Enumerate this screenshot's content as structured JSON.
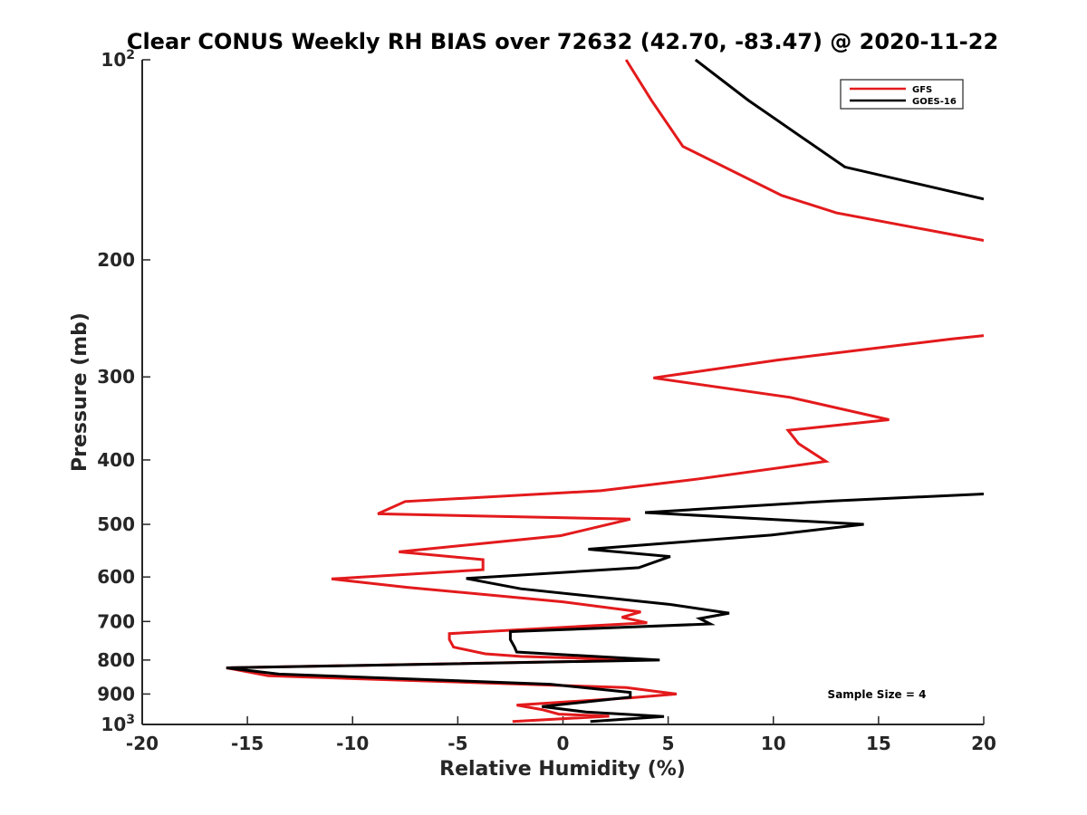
{
  "chart_data": {
    "type": "line",
    "title": "Clear CONUS Weekly RH BIAS over 72632 (42.70, -83.47) @ 2020-11-22",
    "xlabel": "Relative Humidity (%)",
    "ylabel": "Pressure (mb)",
    "xlim": [
      -20,
      20
    ],
    "ylim": [
      100,
      1000
    ],
    "y_scale": "log",
    "y_reversed": true,
    "x_ticks": [
      -20,
      -15,
      -10,
      -5,
      0,
      5,
      10,
      15,
      20
    ],
    "x_tick_labels": [
      "-20",
      "-15",
      "-10",
      "-5",
      "0",
      "5",
      "10",
      "15",
      "20"
    ],
    "y_ticks": [
      {
        "value": 100,
        "base": "10",
        "exp": "2"
      },
      {
        "value": 200,
        "base": "200",
        "exp": ""
      },
      {
        "value": 300,
        "base": "300",
        "exp": ""
      },
      {
        "value": 400,
        "base": "400",
        "exp": ""
      },
      {
        "value": 500,
        "base": "500",
        "exp": ""
      },
      {
        "value": 600,
        "base": "600",
        "exp": ""
      },
      {
        "value": 700,
        "base": "700",
        "exp": ""
      },
      {
        "value": 800,
        "base": "800",
        "exp": ""
      },
      {
        "value": 900,
        "base": "900",
        "exp": ""
      },
      {
        "value": 1000,
        "base": "10",
        "exp": "3"
      }
    ],
    "grid": false,
    "legend_position": "top-right",
    "series": [
      {
        "name": "GFS",
        "color": "#e31a1c",
        "points": [
          [
            3.0,
            100
          ],
          [
            4.2,
            115
          ],
          [
            5.7,
            135
          ],
          [
            10.4,
            160
          ],
          [
            13.0,
            170
          ],
          [
            20.0,
            187
          ],
          [
            null,
            null
          ],
          [
            20.0,
            260
          ],
          [
            18.5,
            263
          ],
          [
            10.2,
            283
          ],
          [
            4.3,
            301
          ],
          [
            10.8,
            322
          ],
          [
            15.5,
            348
          ],
          [
            10.7,
            361
          ],
          [
            11.2,
            378
          ],
          [
            12.5,
            402
          ],
          [
            6.5,
            427
          ],
          [
            1.8,
            445
          ],
          [
            -7.5,
            462
          ],
          [
            -8.8,
            482
          ],
          [
            3.2,
            491
          ],
          [
            -0.1,
            520
          ],
          [
            -7.8,
            550
          ],
          [
            -3.8,
            565
          ],
          [
            -3.8,
            585
          ],
          [
            -11.0,
            604
          ],
          [
            -7.4,
            622
          ],
          [
            0.0,
            654
          ],
          [
            3.7,
            677
          ],
          [
            2.8,
            690
          ],
          [
            4.0,
            703
          ],
          [
            -5.4,
            730
          ],
          [
            -5.4,
            745
          ],
          [
            -5.2,
            765
          ],
          [
            -3.7,
            783
          ],
          [
            -2.0,
            790
          ],
          [
            4.0,
            800
          ],
          [
            -16.0,
            822
          ],
          [
            -14.0,
            845
          ],
          [
            3.0,
            880
          ],
          [
            5.4,
            900
          ],
          [
            3.2,
            912
          ],
          [
            -2.2,
            935
          ],
          [
            -1.0,
            950
          ],
          [
            -0.2,
            965
          ],
          [
            2.2,
            972
          ],
          [
            -2.4,
            990
          ]
        ]
      },
      {
        "name": "GOES-16",
        "color": "#000000",
        "points": [
          [
            6.3,
            100
          ],
          [
            8.8,
            115
          ],
          [
            13.4,
            145
          ],
          [
            20.0,
            162
          ],
          [
            null,
            null
          ],
          [
            20.0,
            450
          ],
          [
            12.8,
            461
          ],
          [
            3.9,
            480
          ],
          [
            14.3,
            500
          ],
          [
            9.9,
            519
          ],
          [
            1.2,
            545
          ],
          [
            5.1,
            559
          ],
          [
            3.6,
            581
          ],
          [
            -4.6,
            603
          ],
          [
            -2.0,
            625
          ],
          [
            5.1,
            660
          ],
          [
            7.9,
            680
          ],
          [
            6.5,
            693
          ],
          [
            7.0,
            706
          ],
          [
            -2.5,
            725
          ],
          [
            -2.5,
            745
          ],
          [
            -2.3,
            765
          ],
          [
            -2.2,
            778
          ],
          [
            4.6,
            800
          ],
          [
            -16.0,
            822
          ],
          [
            -13.5,
            840
          ],
          [
            -0.6,
            870
          ],
          [
            3.2,
            895
          ],
          [
            3.2,
            910
          ],
          [
            -1.0,
            940
          ],
          [
            1.1,
            958
          ],
          [
            4.8,
            973
          ],
          [
            1.3,
            990
          ]
        ]
      }
    ],
    "annotations": [
      {
        "text": "Sample Size = 4"
      }
    ]
  }
}
